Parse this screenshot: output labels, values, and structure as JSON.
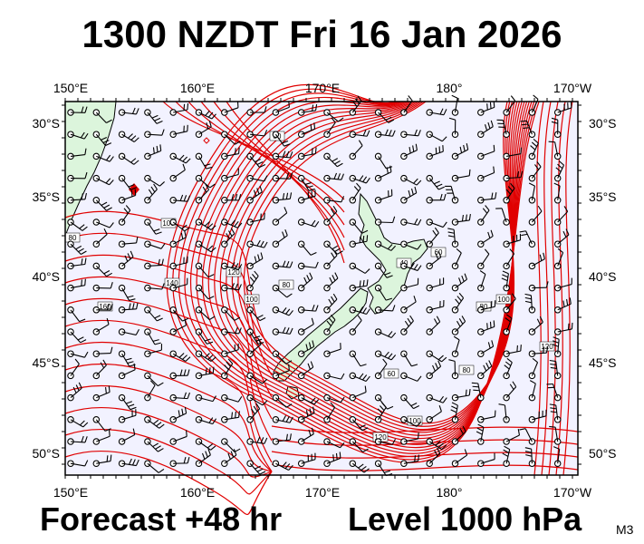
{
  "title": "1300 NZDT Fri 16 Jan 2026",
  "forecast": "Forecast +48 hr",
  "level": "Level 1000 hPa",
  "model": "M3",
  "map": {
    "lon_labels": [
      "150°E",
      "160°E",
      "170°E",
      "180°",
      "170°W"
    ],
    "lat_labels": [
      "30°S",
      "35°S",
      "40°S",
      "45°S",
      "50°S"
    ],
    "contour_labels": [
      "80",
      "100",
      "80",
      "140",
      "160",
      "120",
      "100",
      "80",
      "40",
      "60",
      "80",
      "100",
      "120",
      "80",
      "60",
      "100",
      "120"
    ],
    "colors": {
      "ocean": "#f2f2ff",
      "land": "#dcf5dc",
      "contour": "#e00000",
      "coast": "#000000",
      "barb": "#000000"
    },
    "features": [
      "wind-barbs",
      "geopotential-height-contours",
      "coastlines"
    ]
  }
}
